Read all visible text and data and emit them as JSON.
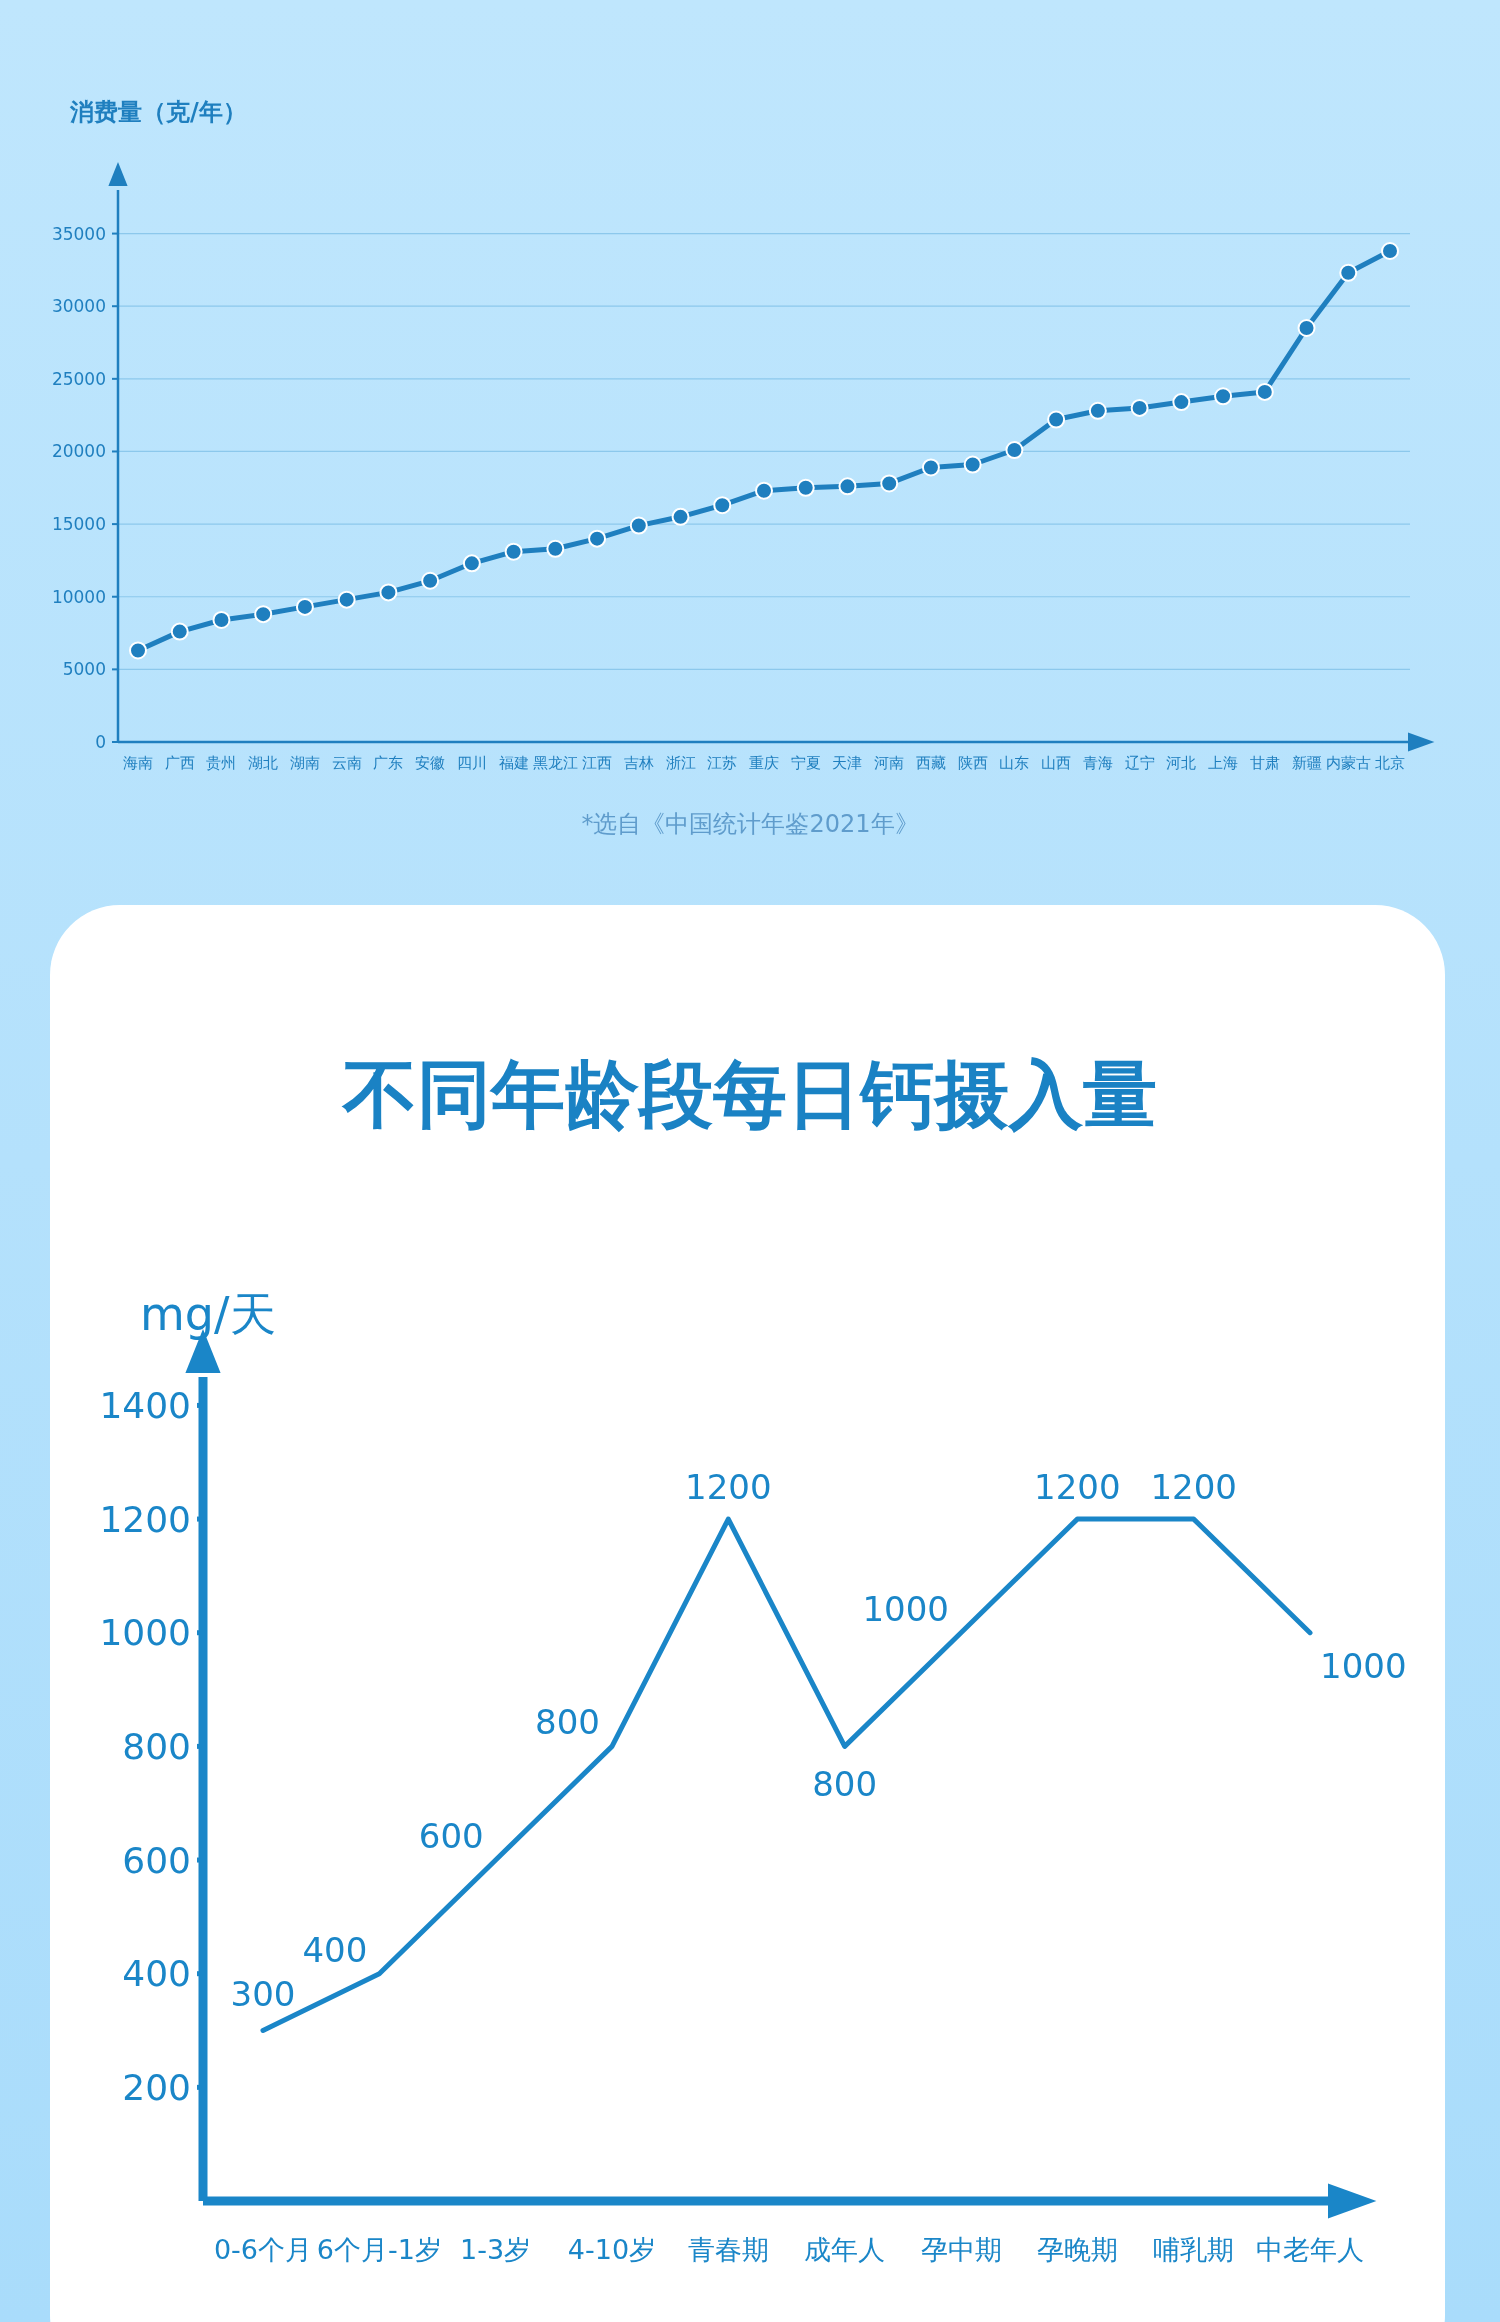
{
  "chart_data": [
    {
      "type": "line",
      "ylabel": "消费量（克/年）",
      "categories": [
        "海南",
        "广西",
        "贵州",
        "湖北",
        "湖南",
        "云南",
        "广东",
        "安徽",
        "四川",
        "福建",
        "黑龙江",
        "江西",
        "吉林",
        "浙江",
        "江苏",
        "重庆",
        "宁夏",
        "天津",
        "河南",
        "西藏",
        "陕西",
        "山东",
        "山西",
        "青海",
        "辽宁",
        "河北",
        "上海",
        "甘肃",
        "新疆",
        "内蒙古",
        "北京"
      ],
      "series": [
        {
          "color": "#1f7fbf",
          "values": [
            6300,
            7600,
            8400,
            8800,
            9300,
            9800,
            10300,
            11100,
            12300,
            13100,
            13300,
            14000,
            14900,
            15500,
            16300,
            17300,
            17500,
            17600,
            17800,
            18900,
            19100,
            20100,
            22200,
            22800,
            23000,
            23400,
            23800,
            24100,
            28500,
            32300,
            33800
          ]
        }
      ],
      "ylim": [
        0,
        38000
      ],
      "yticks": [
        0,
        5000,
        10000,
        15000,
        20000,
        25000,
        30000,
        35000
      ],
      "grid": "y",
      "marker": "circle",
      "line_style": "solid",
      "annotations": [
        "*选自《中国统计年鉴2021年》"
      ]
    },
    {
      "type": "line",
      "title": "不同年龄段每日钙摄入量",
      "ylabel": "mg/天",
      "categories": [
        "0-6个月",
        "6个月-1岁",
        "1-3岁",
        "4-10岁",
        "青春期",
        "成年人",
        "孕中期",
        "孕晚期",
        "哺乳期",
        "中老年人"
      ],
      "series": [
        {
          "color": "#1a86c8",
          "values": [
            300,
            400,
            600,
            800,
            1200,
            800,
            1000,
            1200,
            1200,
            1000
          ]
        }
      ],
      "ylim": [
        0,
        1450
      ],
      "yticks": [
        200,
        400,
        600,
        800,
        1000,
        1200,
        1400
      ],
      "data_labels": true,
      "line_style": "solid"
    }
  ]
}
